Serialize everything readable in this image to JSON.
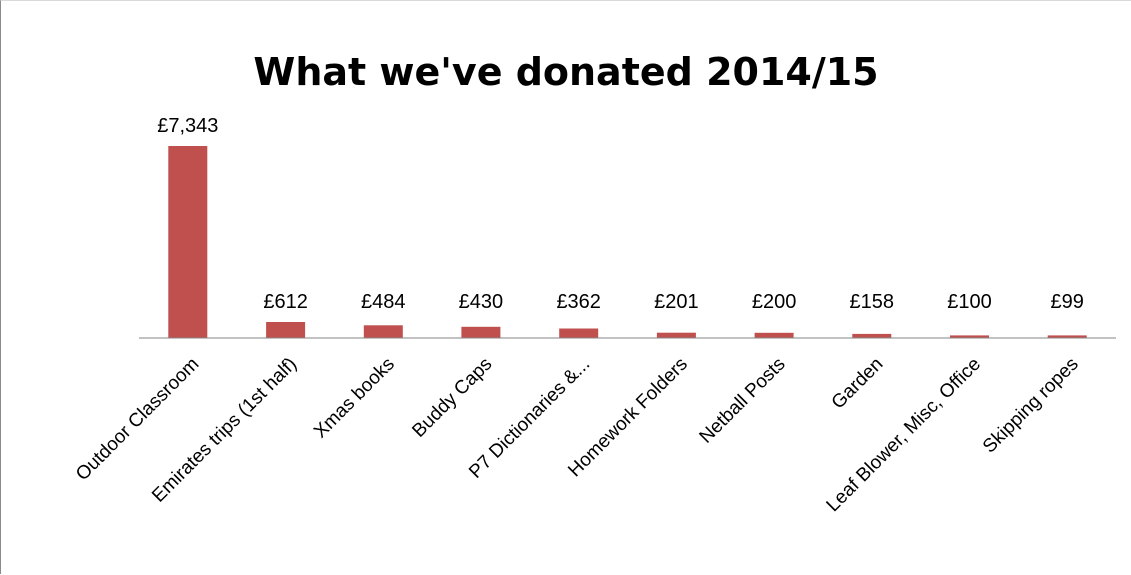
{
  "chart_data": {
    "type": "bar",
    "title": "What we've donated 2014/15",
    "categories": [
      "Outdoor Classroom",
      "Emirates trips (1st half)",
      "Xmas books",
      "Buddy Caps",
      "P7 Dictionaries &...",
      "Homework Folders",
      "Netball Posts",
      "Garden",
      "Leaf Blower, Misc, Office",
      "Skipping ropes"
    ],
    "values": [
      7343,
      612,
      484,
      430,
      362,
      201,
      200,
      158,
      100,
      99
    ],
    "data_labels": [
      "£7,343",
      "£612",
      "£484",
      "£430",
      "£362",
      "£201",
      "£200",
      "£158",
      "£100",
      "£99"
    ],
    "xlabel": "",
    "ylabel": "",
    "ylim": [
      0,
      7343
    ],
    "grid": false,
    "legend": "none",
    "colors": {
      "bar": "#c0504d",
      "axis": "#868686"
    }
  }
}
